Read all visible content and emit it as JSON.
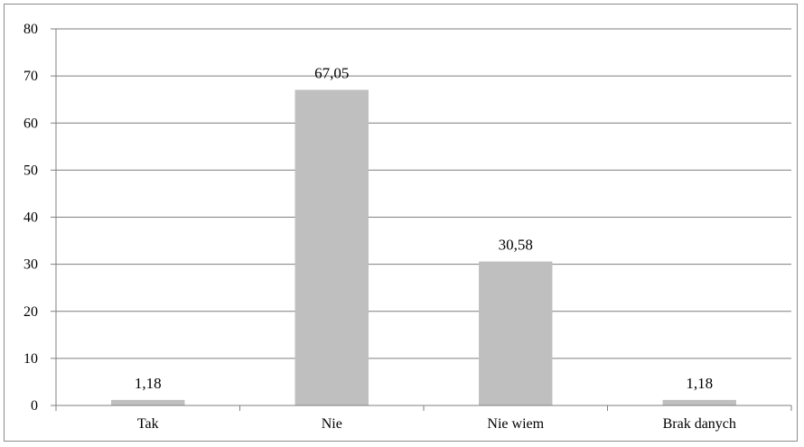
{
  "chart_data": {
    "type": "bar",
    "categories": [
      "Tak",
      "Nie",
      "Nie wiem",
      "Brak danych"
    ],
    "values": [
      1.18,
      67.05,
      30.58,
      1.18
    ],
    "data_labels": [
      "1,18",
      "67,05",
      "30,58",
      "1,18"
    ],
    "y_ticks": [
      0,
      10,
      20,
      30,
      40,
      50,
      60,
      70,
      80
    ],
    "ylim": [
      0,
      80
    ],
    "title": "",
    "xlabel": "",
    "ylabel": "",
    "grid": true,
    "legend": "none",
    "bar_color": "#bfbfbf"
  }
}
